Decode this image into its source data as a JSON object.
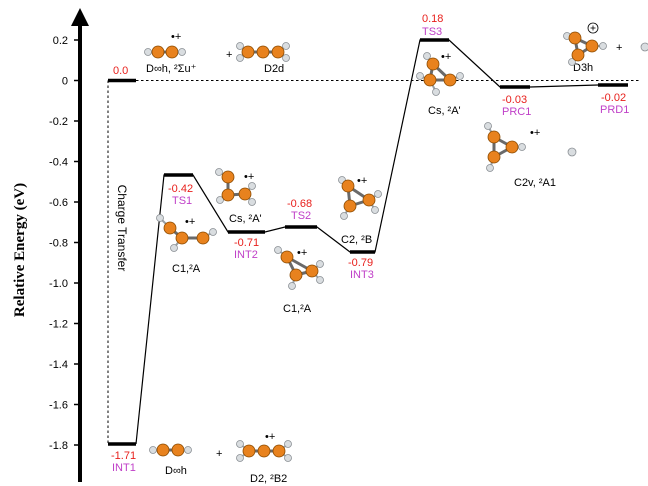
{
  "diagram": {
    "y_axis_label": "Relative Energy (eV)",
    "y_ticks": [
      "0.2",
      "0",
      "-0.2",
      "-0.4",
      "-0.6",
      "-0.8",
      "-1.0",
      "-1.2",
      "-1.4",
      "-1.6",
      "-1.8"
    ],
    "charge_transfer_label": "Charge Transfer",
    "levels": [
      {
        "name": "",
        "energy": "0.0"
      },
      {
        "name": "INT1",
        "energy": "-1.71"
      },
      {
        "name": "TS1",
        "energy": "-0.42"
      },
      {
        "name": "INT2",
        "energy": "-0.71"
      },
      {
        "name": "TS2",
        "energy": "-0.68"
      },
      {
        "name": "INT3",
        "energy": "-0.79"
      },
      {
        "name": "TS3",
        "energy": "0.18"
      },
      {
        "name": "PRC1",
        "energy": "-0.03"
      },
      {
        "name": "PRD1",
        "energy": "-0.02"
      }
    ],
    "symmetry_labels": {
      "reactant_left": "D∞h, ²Σu⁺",
      "reactant_right": "D2d",
      "int1_left": "D∞h",
      "int1_right": "D2, ²B2",
      "ts1": "C1,²A",
      "int2": "Cs, ²A'",
      "int3": "C1,²A",
      "ts2_c2": "C2, ²B",
      "ts3": "Cs, ²A'",
      "prc1": "C2v, ²A1",
      "prd1": "D3h"
    },
    "plus_signs": [
      "+",
      "+",
      "+"
    ],
    "radical_cation": "•+"
  }
}
